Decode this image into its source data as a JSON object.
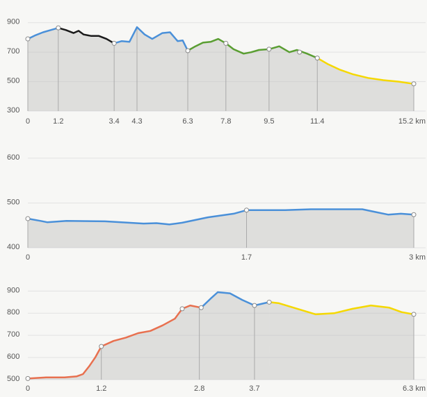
{
  "chart_data": [
    {
      "type": "line",
      "ylim": [
        300,
        960
      ],
      "yticks": [
        300,
        500,
        700,
        900
      ],
      "xlim": [
        0,
        15.2
      ],
      "xticks": [
        0,
        1.2,
        3.4,
        4.3,
        6.3,
        7.8,
        9.5,
        11.4,
        {
          "value": 15.2,
          "label": "15.2 km"
        }
      ],
      "series": [
        {
          "color": "#4a90d9",
          "x": [
            0,
            0.3,
            0.6,
            0.9,
            1.2
          ],
          "values": [
            790,
            815,
            835,
            850,
            865
          ]
        },
        {
          "color": "#1a1a1a",
          "x": [
            1.2,
            1.5,
            1.8,
            2.0,
            2.2,
            2.5,
            2.8,
            3.1,
            3.4
          ],
          "values": [
            865,
            850,
            830,
            845,
            820,
            810,
            810,
            790,
            760
          ]
        },
        {
          "color": "#4a90d9",
          "x": [
            3.4,
            3.7,
            4.0,
            4.3,
            4.6,
            4.9,
            5.3,
            5.6,
            5.9,
            6.1,
            6.3
          ],
          "values": [
            760,
            775,
            770,
            870,
            820,
            790,
            830,
            835,
            775,
            780,
            710
          ]
        },
        {
          "color": "#5a9e32",
          "x": [
            6.3,
            6.6,
            6.9,
            7.2,
            7.5,
            7.8,
            8.1,
            8.5,
            8.8,
            9.1,
            9.5,
            9.9,
            10.3,
            10.6,
            11.0,
            11.4
          ],
          "values": [
            710,
            740,
            765,
            770,
            790,
            760,
            720,
            690,
            700,
            715,
            720,
            740,
            700,
            715,
            690,
            660
          ]
        },
        {
          "color": "#f5d800",
          "x": [
            11.4,
            11.8,
            12.3,
            12.8,
            13.4,
            14.0,
            14.6,
            15.2
          ],
          "values": [
            660,
            620,
            580,
            550,
            525,
            510,
            500,
            485
          ]
        }
      ],
      "markers": {
        "x": [
          0,
          1.2,
          3.4,
          6.3,
          7.8,
          9.5,
          10.7,
          11.4,
          15.2
        ],
        "values": [
          790,
          865,
          760,
          710,
          760,
          720,
          700,
          660,
          485
        ]
      }
    },
    {
      "type": "line",
      "ylim": [
        400,
        620
      ],
      "yticks": [
        400,
        500,
        600
      ],
      "xlim": [
        0,
        3
      ],
      "xticks": [
        0,
        1.7,
        {
          "value": 3,
          "label": "3 km"
        }
      ],
      "series": [
        {
          "color": "#4a90d9",
          "x": [
            0,
            0.1,
            0.15,
            0.3,
            0.6,
            0.9,
            1.0,
            1.1,
            1.2,
            1.3,
            1.4,
            1.6,
            1.7,
            2.0,
            2.2,
            2.5,
            2.6,
            2.7,
            2.8,
            2.9,
            3.0
          ],
          "values": [
            465,
            460,
            457,
            460,
            459,
            454,
            455,
            452,
            456,
            462,
            468,
            476,
            484,
            484,
            486,
            486,
            486,
            480,
            474,
            476,
            474
          ]
        }
      ],
      "markers": {
        "x": [
          0,
          1.7,
          3
        ],
        "values": [
          465,
          484,
          474
        ]
      }
    },
    {
      "type": "line",
      "ylim": [
        500,
        945
      ],
      "yticks": [
        500,
        600,
        700,
        800,
        900
      ],
      "xlim": [
        0,
        6.3
      ],
      "xticks": [
        0,
        1.2,
        2.8,
        3.7,
        {
          "value": 6.3,
          "label": "6.3 km"
        }
      ],
      "series": [
        {
          "color": "#e8704f",
          "x": [
            0,
            0.3,
            0.6,
            0.8,
            0.9,
            1.0,
            1.1,
            1.2,
            1.4,
            1.6,
            1.8,
            2.0,
            2.2,
            2.4,
            2.52,
            2.65,
            2.83
          ],
          "values": [
            505,
            510,
            510,
            515,
            525,
            560,
            600,
            650,
            675,
            690,
            710,
            720,
            745,
            775,
            820,
            835,
            825
          ]
        },
        {
          "color": "#4a90d9",
          "x": [
            2.83,
            3.0,
            3.1,
            3.3,
            3.5,
            3.7,
            3.94
          ],
          "values": [
            825,
            870,
            895,
            890,
            860,
            835,
            850
          ]
        },
        {
          "color": "#f5d800",
          "x": [
            3.94,
            4.1,
            4.4,
            4.7,
            5.0,
            5.3,
            5.6,
            5.9,
            6.1,
            6.3
          ],
          "values": [
            850,
            845,
            820,
            795,
            800,
            820,
            835,
            825,
            805,
            795
          ]
        }
      ],
      "markers": {
        "x": [
          0,
          1.2,
          2.52,
          2.83,
          3.7,
          3.94,
          6.3
        ],
        "values": [
          505,
          650,
          820,
          825,
          835,
          850,
          795
        ]
      }
    }
  ]
}
